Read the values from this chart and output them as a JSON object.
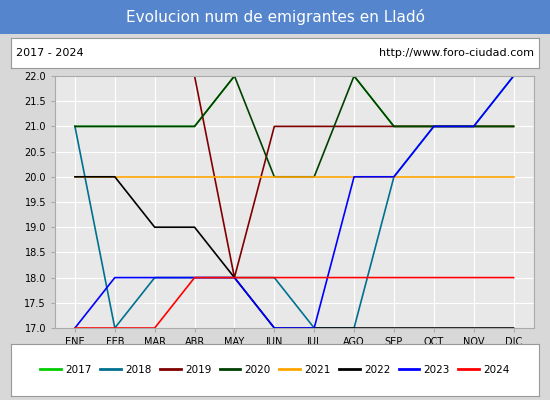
{
  "title": "Evolucion num de emigrantes en Lladó",
  "subtitle_left": "2017 - 2024",
  "subtitle_right": "http://www.foro-ciudad.com",
  "xlabel_months": [
    "ENE",
    "FEB",
    "MAR",
    "ABR",
    "MAY",
    "JUN",
    "JUL",
    "AGO",
    "SEP",
    "OCT",
    "NOV",
    "DIC"
  ],
  "ylim": [
    17.0,
    22.0
  ],
  "yticks": [
    17.0,
    17.5,
    18.0,
    18.5,
    19.0,
    19.5,
    20.0,
    20.5,
    21.0,
    21.5,
    22.0
  ],
  "series": {
    "2017": {
      "color": "#00cc00",
      "data": [
        [
          1,
          21
        ],
        [
          2,
          21
        ],
        [
          3,
          21
        ],
        [
          4,
          21
        ],
        [
          5,
          22
        ],
        [
          6,
          22
        ],
        [
          7,
          22
        ],
        [
          8,
          22
        ],
        [
          9,
          21
        ],
        [
          10,
          21
        ],
        [
          11,
          21
        ],
        [
          12,
          21
        ]
      ]
    },
    "2018": {
      "color": "#007090",
      "data": [
        [
          1,
          21
        ],
        [
          2,
          17
        ],
        [
          3,
          18
        ],
        [
          4,
          18
        ],
        [
          5,
          18
        ],
        [
          6,
          18
        ],
        [
          7,
          17
        ],
        [
          8,
          17
        ],
        [
          9,
          20
        ],
        [
          10,
          21
        ],
        [
          11,
          21
        ],
        [
          12,
          22
        ]
      ]
    },
    "2019": {
      "color": "#800000",
      "data": [
        [
          1,
          22
        ],
        [
          2,
          22
        ],
        [
          3,
          22
        ],
        [
          4,
          22
        ],
        [
          5,
          18
        ],
        [
          6,
          21
        ],
        [
          7,
          21
        ],
        [
          8,
          21
        ],
        [
          9,
          21
        ],
        [
          10,
          21
        ],
        [
          11,
          21
        ],
        [
          12,
          21
        ]
      ]
    },
    "2020": {
      "color": "#004000",
      "data": [
        [
          1,
          21
        ],
        [
          2,
          21
        ],
        [
          3,
          21
        ],
        [
          4,
          21
        ],
        [
          5,
          22
        ],
        [
          6,
          20
        ],
        [
          7,
          20
        ],
        [
          8,
          22
        ],
        [
          9,
          21
        ],
        [
          10,
          21
        ],
        [
          11,
          21
        ],
        [
          12,
          21
        ]
      ]
    },
    "2021": {
      "color": "#ffa500",
      "data": [
        [
          1,
          20
        ],
        [
          2,
          20
        ],
        [
          3,
          20
        ],
        [
          4,
          20
        ],
        [
          5,
          20
        ],
        [
          6,
          20
        ],
        [
          7,
          20
        ],
        [
          8,
          20
        ],
        [
          9,
          20
        ],
        [
          10,
          20
        ],
        [
          11,
          20
        ],
        [
          12,
          20
        ]
      ]
    },
    "2022": {
      "color": "#000000",
      "data": [
        [
          1,
          20
        ],
        [
          2,
          20
        ],
        [
          3,
          19
        ],
        [
          4,
          19
        ],
        [
          5,
          18
        ],
        [
          6,
          17
        ],
        [
          7,
          17
        ],
        [
          8,
          17
        ],
        [
          9,
          17
        ],
        [
          10,
          17
        ],
        [
          11,
          17
        ],
        [
          12,
          17
        ]
      ]
    },
    "2023": {
      "color": "#0000ff",
      "data": [
        [
          1,
          17
        ],
        [
          2,
          18
        ],
        [
          3,
          18
        ],
        [
          4,
          18
        ],
        [
          5,
          18
        ],
        [
          6,
          17
        ],
        [
          7,
          17
        ],
        [
          8,
          20
        ],
        [
          9,
          20
        ],
        [
          10,
          21
        ],
        [
          11,
          21
        ],
        [
          12,
          22
        ]
      ]
    },
    "2024": {
      "color": "#ff0000",
      "data": [
        [
          1,
          17
        ],
        [
          2,
          17
        ],
        [
          3,
          17
        ],
        [
          4,
          18
        ],
        [
          5,
          18
        ],
        [
          6,
          18
        ],
        [
          7,
          18
        ],
        [
          8,
          18
        ],
        [
          9,
          18
        ],
        [
          10,
          18
        ],
        [
          11,
          18
        ],
        [
          12,
          18
        ]
      ]
    }
  },
  "background_color": "#d8d8d8",
  "plot_background": "#e8e8e8",
  "title_bg": "#5585cc",
  "title_color": "#ffffff",
  "grid_color": "#ffffff",
  "title_fontsize": 11,
  "tick_fontsize": 7,
  "legend_fontsize": 7.5
}
